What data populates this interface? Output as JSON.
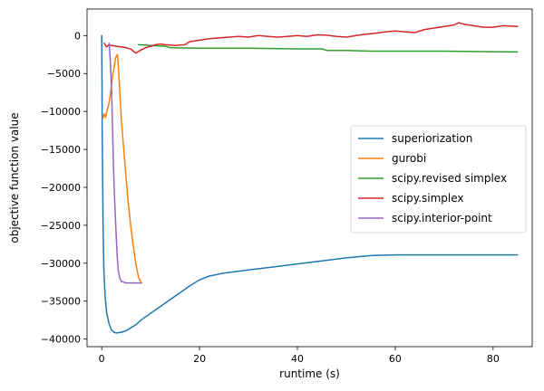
{
  "chart_data": {
    "type": "line",
    "title": "",
    "xlabel": "runtime (s)",
    "ylabel": "objective function value",
    "xlim": [
      -3,
      88
    ],
    "ylim": [
      -41000,
      3500
    ],
    "xticks": [
      0,
      20,
      40,
      60,
      80
    ],
    "yticks": [
      0,
      -5000,
      -10000,
      -15000,
      -20000,
      -25000,
      -30000,
      -35000,
      -40000
    ],
    "xtick_labels": [
      "0",
      "20",
      "40",
      "60",
      "80"
    ],
    "ytick_labels": [
      "0",
      "−5000",
      "−10000",
      "−15000",
      "−20000",
      "−25000",
      "−30000",
      "−35000",
      "−40000"
    ],
    "grid": false,
    "legend_position": "center-right",
    "series": [
      {
        "name": "superiorization",
        "color": "#1f77b4",
        "points": [
          [
            0.0,
            0
          ],
          [
            0.05,
            -6000
          ],
          [
            0.1,
            -12000
          ],
          [
            0.2,
            -20000
          ],
          [
            0.3,
            -26000
          ],
          [
            0.45,
            -31000
          ],
          [
            0.7,
            -34500
          ],
          [
            1.0,
            -36500
          ],
          [
            1.5,
            -38000
          ],
          [
            2.0,
            -38800
          ],
          [
            2.5,
            -39100
          ],
          [
            3.0,
            -39200
          ],
          [
            4.0,
            -39100
          ],
          [
            5.0,
            -38900
          ],
          [
            6.0,
            -38500
          ],
          [
            7.0,
            -38100
          ],
          [
            8.0,
            -37500
          ],
          [
            10.0,
            -36600
          ],
          [
            12.0,
            -35700
          ],
          [
            14.0,
            -34800
          ],
          [
            16.0,
            -33900
          ],
          [
            18.0,
            -33000
          ],
          [
            20.0,
            -32200
          ],
          [
            22.0,
            -31700
          ],
          [
            25.0,
            -31300
          ],
          [
            30.0,
            -30900
          ],
          [
            35.0,
            -30500
          ],
          [
            40.0,
            -30100
          ],
          [
            45.0,
            -29700
          ],
          [
            50.0,
            -29300
          ],
          [
            55.0,
            -29000
          ],
          [
            60.0,
            -28900
          ],
          [
            70.0,
            -28900
          ],
          [
            80.0,
            -28900
          ],
          [
            85.0,
            -28900
          ]
        ]
      },
      {
        "name": "gurobi",
        "color": "#ff7f0e",
        "points": [
          [
            0.2,
            -11000
          ],
          [
            0.5,
            -10300
          ],
          [
            0.8,
            -10800
          ],
          [
            1.1,
            -9800
          ],
          [
            1.4,
            -9200
          ],
          [
            1.7,
            -8000
          ],
          [
            2.0,
            -6500
          ],
          [
            2.3,
            -5000
          ],
          [
            2.6,
            -4000
          ],
          [
            2.8,
            -3000
          ],
          [
            3.0,
            -2700
          ],
          [
            3.2,
            -2500
          ],
          [
            3.4,
            -4000
          ],
          [
            3.7,
            -7500
          ],
          [
            4.0,
            -11000
          ],
          [
            4.5,
            -15000
          ],
          [
            5.0,
            -19000
          ],
          [
            5.5,
            -22500
          ],
          [
            6.0,
            -25500
          ],
          [
            6.5,
            -28000
          ],
          [
            7.0,
            -30200
          ],
          [
            7.5,
            -31800
          ],
          [
            8.0,
            -32500
          ],
          [
            8.2,
            -32600
          ]
        ]
      },
      {
        "name": "scipy.revised simplex",
        "color": "#2ca02c",
        "points": [
          [
            7.5,
            -1200
          ],
          [
            10.0,
            -1300
          ],
          [
            13.0,
            -1400
          ],
          [
            14.0,
            -1600
          ],
          [
            20.0,
            -1650
          ],
          [
            30.0,
            -1650
          ],
          [
            35.0,
            -1700
          ],
          [
            40.0,
            -1750
          ],
          [
            45.0,
            -1750
          ],
          [
            46.0,
            -1950
          ],
          [
            50.0,
            -1950
          ],
          [
            55.0,
            -2050
          ],
          [
            60.0,
            -2050
          ],
          [
            70.0,
            -2050
          ],
          [
            75.0,
            -2100
          ],
          [
            85.0,
            -2150
          ]
        ]
      },
      {
        "name": "scipy.simplex",
        "color": "#d62728",
        "points": [
          [
            0.5,
            -1000
          ],
          [
            1.0,
            -1500
          ],
          [
            1.5,
            -1200
          ],
          [
            2.0,
            -1300
          ],
          [
            3.0,
            -1400
          ],
          [
            4.0,
            -1500
          ],
          [
            5.0,
            -1600
          ],
          [
            6.0,
            -1800
          ],
          [
            6.5,
            -2100
          ],
          [
            7.0,
            -2300
          ],
          [
            8.0,
            -1900
          ],
          [
            9.0,
            -1600
          ],
          [
            10.0,
            -1400
          ],
          [
            11.0,
            -1200
          ],
          [
            12.0,
            -1100
          ],
          [
            13.0,
            -1200
          ],
          [
            14.0,
            -1250
          ],
          [
            15.0,
            -1300
          ],
          [
            17.0,
            -1200
          ],
          [
            18.0,
            -800
          ],
          [
            20.0,
            -600
          ],
          [
            22.0,
            -400
          ],
          [
            24.0,
            -300
          ],
          [
            26.0,
            -200
          ],
          [
            28.0,
            -100
          ],
          [
            30.0,
            -200
          ],
          [
            32.0,
            0
          ],
          [
            34.0,
            -100
          ],
          [
            36.0,
            -200
          ],
          [
            38.0,
            -100
          ],
          [
            40.0,
            0
          ],
          [
            42.0,
            -100
          ],
          [
            44.0,
            100
          ],
          [
            46.0,
            50
          ],
          [
            48.0,
            -100
          ],
          [
            50.0,
            -200
          ],
          [
            52.0,
            0
          ],
          [
            54.0,
            200
          ],
          [
            56.0,
            300
          ],
          [
            58.0,
            500
          ],
          [
            60.0,
            600
          ],
          [
            62.0,
            500
          ],
          [
            64.0,
            400
          ],
          [
            66.0,
            800
          ],
          [
            68.0,
            1000
          ],
          [
            70.0,
            1200
          ],
          [
            72.0,
            1400
          ],
          [
            73.0,
            1700
          ],
          [
            74.0,
            1500
          ],
          [
            76.0,
            1300
          ],
          [
            78.0,
            1100
          ],
          [
            80.0,
            1100
          ],
          [
            82.0,
            1300
          ],
          [
            85.0,
            1200
          ]
        ]
      },
      {
        "name": "scipy.interior-point",
        "color": "#9467bd",
        "points": [
          [
            1.5,
            -1000
          ],
          [
            1.6,
            -1500
          ],
          [
            1.8,
            -4000
          ],
          [
            2.0,
            -7000
          ],
          [
            2.2,
            -12000
          ],
          [
            2.4,
            -17000
          ],
          [
            2.6,
            -21000
          ],
          [
            2.8,
            -24000
          ],
          [
            3.0,
            -27000
          ],
          [
            3.2,
            -29500
          ],
          [
            3.4,
            -31000
          ],
          [
            3.7,
            -32000
          ],
          [
            4.0,
            -32400
          ],
          [
            5.0,
            -32600
          ],
          [
            6.0,
            -32600
          ],
          [
            7.0,
            -32600
          ],
          [
            8.0,
            -32600
          ]
        ]
      }
    ]
  }
}
